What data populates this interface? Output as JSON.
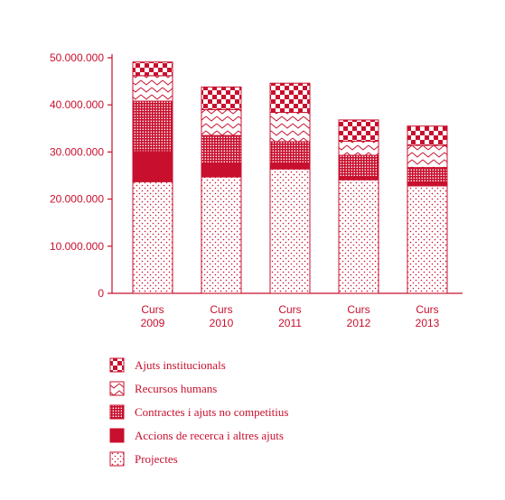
{
  "chart_data": {
    "type": "bar",
    "stacked": true,
    "title": "",
    "xlabel": "",
    "ylabel": "",
    "ylim": [
      0,
      50000000
    ],
    "yticks": [
      0,
      10000000,
      20000000,
      30000000,
      40000000,
      50000000
    ],
    "ytick_labels": [
      "0",
      "10.000.000",
      "20.000.000",
      "30.000.000",
      "40.000.000",
      "50.000.000"
    ],
    "categories": [
      [
        "Curs",
        "2009"
      ],
      [
        "Curs",
        "2010"
      ],
      [
        "Curs",
        "2011"
      ],
      [
        "Curs",
        "2012"
      ],
      [
        "Curs",
        "2013"
      ]
    ],
    "series": [
      {
        "name": "Projectes",
        "pattern": "dots",
        "values": [
          23700000,
          24700000,
          26400000,
          24100000,
          22800000
        ]
      },
      {
        "name": "Accions de recerca i altres ajuts",
        "pattern": "solid",
        "values": [
          6400000,
          2900000,
          1000000,
          600000,
          800000
        ]
      },
      {
        "name": "Contractes i ajuts no competitius",
        "pattern": "grid",
        "values": [
          10700000,
          5900000,
          4800000,
          4600000,
          3100000
        ]
      },
      {
        "name": "Recursos humans",
        "pattern": "zigzag",
        "values": [
          5400000,
          5500000,
          6200000,
          3000000,
          4700000
        ]
      },
      {
        "name": "Ajuts institucionals",
        "pattern": "checker",
        "values": [
          2900000,
          4800000,
          6200000,
          4500000,
          4100000
        ]
      }
    ],
    "legend_order": [
      "Ajuts institucionals",
      "Recursos humans",
      "Contractes i ajuts no competitius",
      "Accions de recerca i altres ajuts",
      "Projectes"
    ],
    "legend_position": "bottom-left",
    "grid": false,
    "colors": {
      "accent": "#c8102e",
      "background": "#ffffff"
    }
  }
}
